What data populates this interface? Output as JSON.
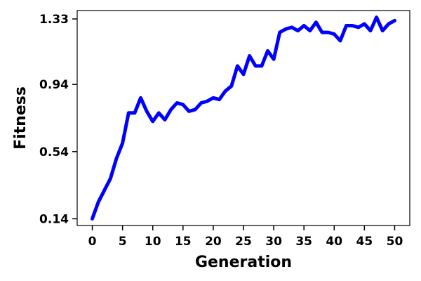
{
  "chart_data": {
    "type": "line",
    "title": "",
    "xlabel": "Generation",
    "ylabel": "Fitness",
    "xlim": [
      -2.5,
      52.5
    ],
    "ylim": [
      0.1,
      1.38
    ],
    "x_ticks": [
      0,
      5,
      10,
      15,
      20,
      25,
      30,
      35,
      40,
      45,
      50
    ],
    "y_ticks": [
      0.14,
      0.54,
      0.94,
      1.33
    ],
    "y_tick_labels": [
      "0.14",
      "0.54",
      "0.94",
      "1.33"
    ],
    "grid": false,
    "series": [
      {
        "name": "",
        "color": "#0000ff",
        "x": [
          0,
          1,
          2,
          3,
          4,
          5,
          6,
          7,
          8,
          9,
          10,
          11,
          12,
          13,
          14,
          15,
          16,
          17,
          18,
          19,
          20,
          21,
          22,
          23,
          24,
          25,
          26,
          27,
          28,
          29,
          30,
          31,
          32,
          33,
          34,
          35,
          36,
          37,
          38,
          39,
          40,
          41,
          42,
          43,
          44,
          45,
          46,
          47,
          48,
          49,
          50
        ],
        "y": [
          0.14,
          0.24,
          0.31,
          0.38,
          0.5,
          0.59,
          0.77,
          0.77,
          0.86,
          0.78,
          0.72,
          0.77,
          0.73,
          0.79,
          0.83,
          0.82,
          0.78,
          0.79,
          0.83,
          0.84,
          0.86,
          0.85,
          0.9,
          0.93,
          1.05,
          1.0,
          1.11,
          1.05,
          1.05,
          1.14,
          1.09,
          1.25,
          1.27,
          1.28,
          1.26,
          1.29,
          1.26,
          1.31,
          1.25,
          1.25,
          1.24,
          1.2,
          1.29,
          1.29,
          1.28,
          1.3,
          1.26,
          1.34,
          1.26,
          1.3,
          1.32
        ]
      }
    ]
  }
}
